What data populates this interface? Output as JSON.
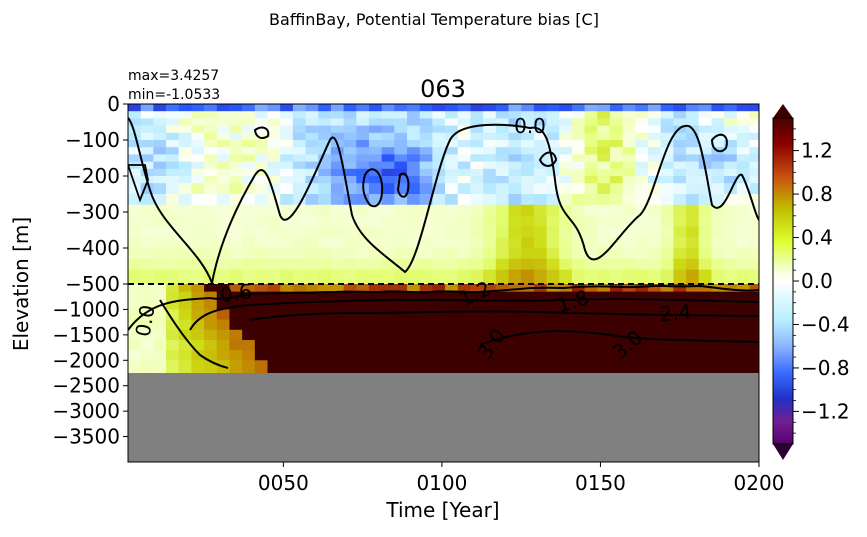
{
  "suptitle": "BaffinBay, Potential Temperature bias [C]",
  "stats": {
    "max": "max=3.4257",
    "min": "min=-1.0533"
  },
  "chart_data": {
    "type": "heatmap",
    "title": "063",
    "xlabel": "Time [Year]",
    "ylabel": "Elevation [m]",
    "x_range": [
      1,
      200
    ],
    "x_ticks": [
      "0050",
      "0100",
      "0150",
      "0200"
    ],
    "x_tick_values": [
      50,
      100,
      150,
      200
    ],
    "y_ticks_upper": [
      "0",
      "−100",
      "−200",
      "−300",
      "−400",
      "−500"
    ],
    "y_ticks_lower": [
      "−1000",
      "−1500",
      "−2000",
      "−2500",
      "−3000",
      "−3500"
    ],
    "y_upper_range_m": [
      0,
      -500
    ],
    "y_lower_range_m": [
      -500,
      -4000
    ],
    "seafloor_depth_m": -2250,
    "colorbar": {
      "range": [
        -1.5,
        1.5
      ],
      "extend": "both",
      "tick_labels": [
        "1.2",
        "0.8",
        "0.4",
        "0.0",
        "−0.4",
        "−0.8",
        "−1.2"
      ],
      "tick_values": [
        1.2,
        0.8,
        0.4,
        0.0,
        -0.4,
        -0.8,
        -1.2
      ]
    },
    "contour_labels": [
      "0.0",
      "0.0",
      "0.6",
      "1.2",
      "1.8",
      "2.4",
      "3.0",
      "3.0"
    ],
    "colors": {
      "land_mask": "#808080",
      "split_line": "#000000"
    }
  }
}
